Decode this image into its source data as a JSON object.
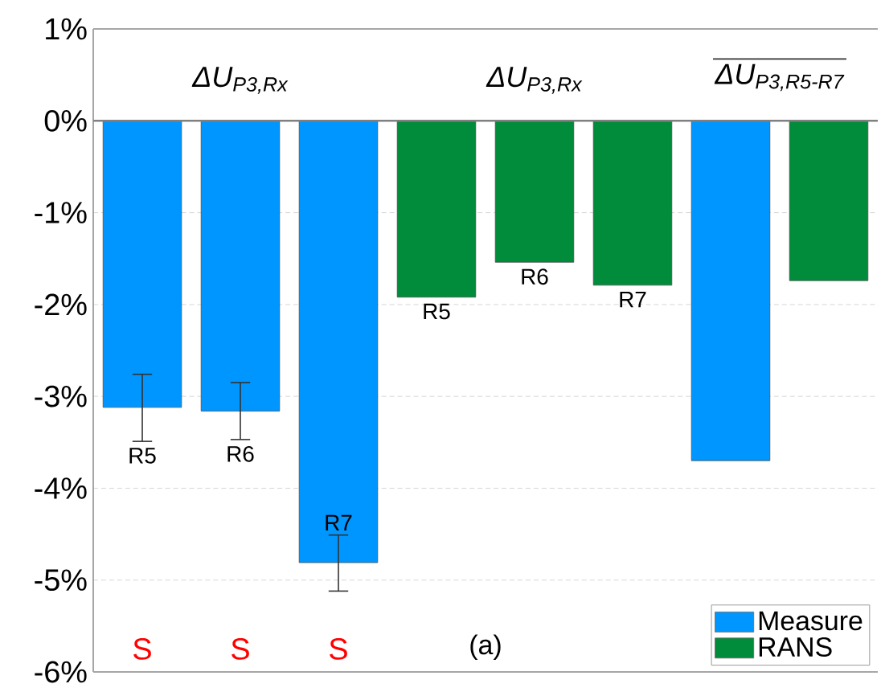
{
  "chart_data": {
    "type": "bar",
    "categories": [
      null,
      null,
      null,
      null,
      null,
      null,
      null,
      null
    ],
    "series": [
      {
        "name": "Measure",
        "color": "#0096ff",
        "values": [
          -3.12,
          -3.16,
          -4.81,
          null,
          null,
          null,
          -3.7,
          null
        ],
        "errors": [
          [
            -3.49,
            -2.76
          ],
          [
            -3.47,
            -2.85
          ],
          [
            -5.12,
            -4.51
          ],
          null,
          null,
          null,
          null,
          null
        ],
        "value_labels": [
          "R5",
          "R6",
          "R7",
          null,
          null,
          null,
          null,
          null
        ]
      },
      {
        "name": "RANS",
        "color": "#008c3a",
        "values": [
          null,
          null,
          null,
          -1.92,
          -1.54,
          -1.79,
          null,
          -1.74
        ],
        "value_labels": [
          null,
          null,
          null,
          "R5",
          "R6",
          "R7",
          null,
          null
        ]
      }
    ],
    "ylim": [
      -6,
      1
    ],
    "yticks": [
      {
        "value": 1,
        "label": "1%"
      },
      {
        "value": 0,
        "label": "0%"
      },
      {
        "value": -1,
        "label": "-1%"
      },
      {
        "value": -2,
        "label": "-2%"
      },
      {
        "value": -3,
        "label": "-3%"
      },
      {
        "value": -4,
        "label": "-4%"
      },
      {
        "value": -5,
        "label": "-5%"
      },
      {
        "value": -6,
        "label": "-6%"
      }
    ],
    "tick_labels": "y",
    "grid": "y",
    "legend": "bottom right",
    "ref_lines": [
      {
        "axis": "y",
        "value": 0,
        "color": "#808080"
      }
    ],
    "annotations": [
      "ΔU$_{P3,Rx}$",
      "ΔU$_{P3,Rx}$",
      "ΔU$_{P3,R5-R7}$",
      "S",
      "S",
      "S",
      "(a)"
    ]
  }
}
